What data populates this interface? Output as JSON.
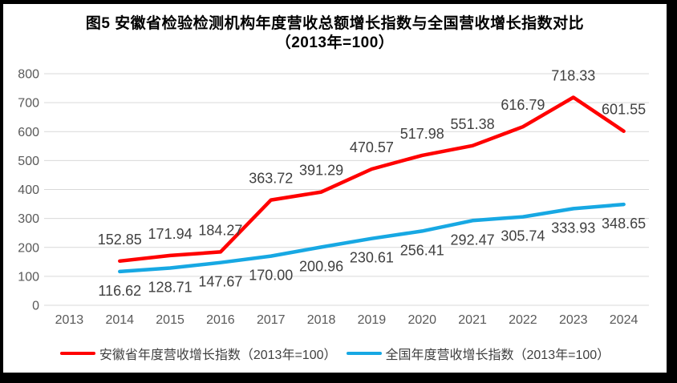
{
  "title": {
    "line1": "图5  安徽省检验检测机构年度营收总额增长指数与全国营收增长指数对比",
    "line2": "（2013年=100）"
  },
  "chart_data": {
    "type": "line",
    "title": "图5 安徽省检验检测机构年度营收总额增长指数与全国营收增长指数对比（2013年=100）",
    "x": [
      2013,
      2014,
      2015,
      2016,
      2017,
      2018,
      2019,
      2020,
      2021,
      2022,
      2023,
      2024
    ],
    "series": [
      {
        "name": "安徽省年度营收增长指数（2013年=100）",
        "color": "#FF0000",
        "label_position": "above",
        "values": [
          null,
          152.85,
          171.94,
          184.27,
          363.72,
          391.29,
          470.57,
          517.98,
          551.38,
          616.79,
          718.33,
          601.55
        ]
      },
      {
        "name": "全国年度营收增长指数（2013年=100）",
        "color": "#17A8E3",
        "label_position": "below",
        "values": [
          null,
          116.62,
          128.71,
          147.67,
          170.0,
          200.96,
          230.61,
          256.41,
          292.47,
          305.74,
          333.93,
          348.65
        ]
      }
    ],
    "ylim": [
      0,
      800
    ],
    "ytick_step": 100,
    "yticks": [
      0,
      100,
      200,
      300,
      400,
      500,
      600,
      700,
      800
    ],
    "grid": true,
    "data_labels": true,
    "legend_position": "bottom"
  },
  "style": {
    "grid_color": "#D9D9D9",
    "tick_color": "#595959",
    "data_label_color": "#404040",
    "frame_color": "#000000",
    "background": "#FFFFFF"
  }
}
